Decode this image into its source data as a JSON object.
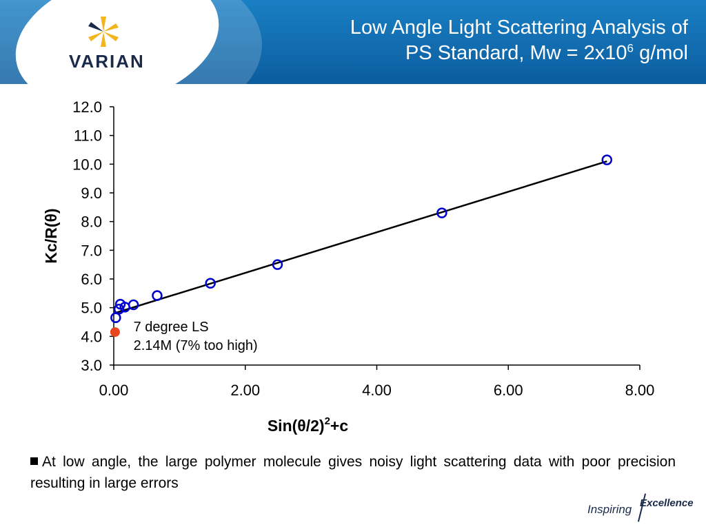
{
  "header": {
    "logo_text": "VARIAN",
    "title_line1": "Low Angle Light Scattering Analysis of",
    "title_line2_prefix": "PS Standard, Mw = 2x10",
    "title_line2_exp": "6",
    "title_line2_suffix": " g/mol"
  },
  "colors": {
    "header_blue": "#0b6aae",
    "series_blue": "#0000cc",
    "highlight_red": "#e8461e",
    "fit_line": "#000000"
  },
  "chart_data": {
    "type": "scatter",
    "xlabel": "Sin(θ/2)²+c",
    "xlabel_parts": {
      "main": "Sin(θ/2)",
      "sup": "2",
      "tail": "+c"
    },
    "ylabel": "Kc/R(θ)",
    "xlim": [
      0,
      8
    ],
    "ylim": [
      3,
      12
    ],
    "x_ticks": [
      "0.00",
      "2.00",
      "4.00",
      "6.00",
      "8.00"
    ],
    "y_ticks": [
      "3.0",
      "4.0",
      "5.0",
      "6.0",
      "7.0",
      "8.0",
      "9.0",
      "10.0",
      "11.0",
      "12.0"
    ],
    "grid": false,
    "series": [
      {
        "marker": "open-circle",
        "x": [
          0.03,
          0.08,
          0.1,
          0.17,
          0.3,
          0.66,
          1.47,
          2.49,
          4.99,
          7.5
        ],
        "y": [
          4.65,
          4.95,
          5.12,
          5.02,
          5.1,
          5.42,
          5.85,
          6.5,
          8.3,
          10.15
        ]
      },
      {
        "marker": "filled-circle",
        "x": [
          0.02
        ],
        "y": [
          4.15
        ]
      }
    ],
    "fit_line": {
      "x": [
        0.0,
        7.5
      ],
      "y": [
        4.8,
        10.1
      ]
    },
    "annotation": {
      "line1": "7 degree LS",
      "line2": "2.14M (7% too high)",
      "x": 0.3,
      "y": 4.15
    }
  },
  "bullet": "At low angle, the large polymer molecule gives noisy light scattering data with poor precision resulting in large errors",
  "tagline": {
    "word1": "Inspiring",
    "word2": "Excellence"
  }
}
